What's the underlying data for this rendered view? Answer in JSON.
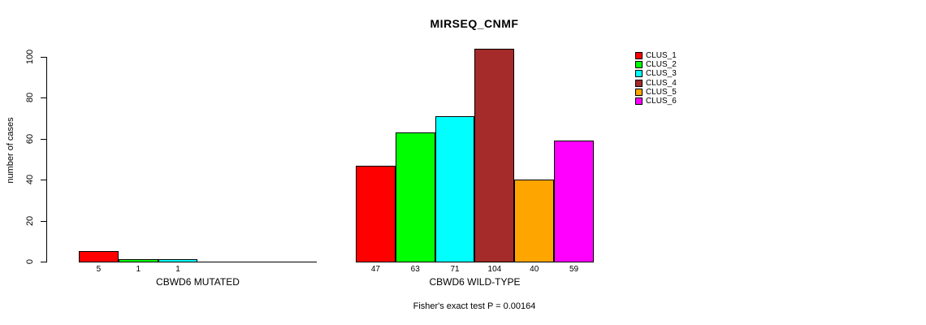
{
  "chart_data": {
    "type": "bar",
    "title": "MIRSEQ_CNMF",
    "ylabel": "number of cases",
    "ylim": [
      0,
      100
    ],
    "yticks": [
      0,
      20,
      40,
      60,
      80,
      100
    ],
    "grid": false,
    "legend_position": "top-right",
    "clusters": [
      {
        "name": "CLUS_1",
        "color": "#FF0000"
      },
      {
        "name": "CLUS_2",
        "color": "#00FF00"
      },
      {
        "name": "CLUS_3",
        "color": "#00FFFF"
      },
      {
        "name": "CLUS_4",
        "color": "#A52A2A"
      },
      {
        "name": "CLUS_5",
        "color": "#FFA500"
      },
      {
        "name": "CLUS_6",
        "color": "#FF00FF"
      }
    ],
    "groups": [
      {
        "label": "CBWD6 MUTATED",
        "values": [
          5,
          1,
          1,
          0,
          0,
          0
        ],
        "value_labels": [
          "5",
          "1",
          "1",
          "",
          "",
          ""
        ]
      },
      {
        "label": "CBWD6 WILD-TYPE",
        "values": [
          47,
          63,
          71,
          104,
          40,
          59
        ],
        "value_labels": [
          "47",
          "63",
          "71",
          "104",
          "40",
          "59"
        ]
      }
    ],
    "footnote": "Fisher's exact test P = 0.00164"
  }
}
